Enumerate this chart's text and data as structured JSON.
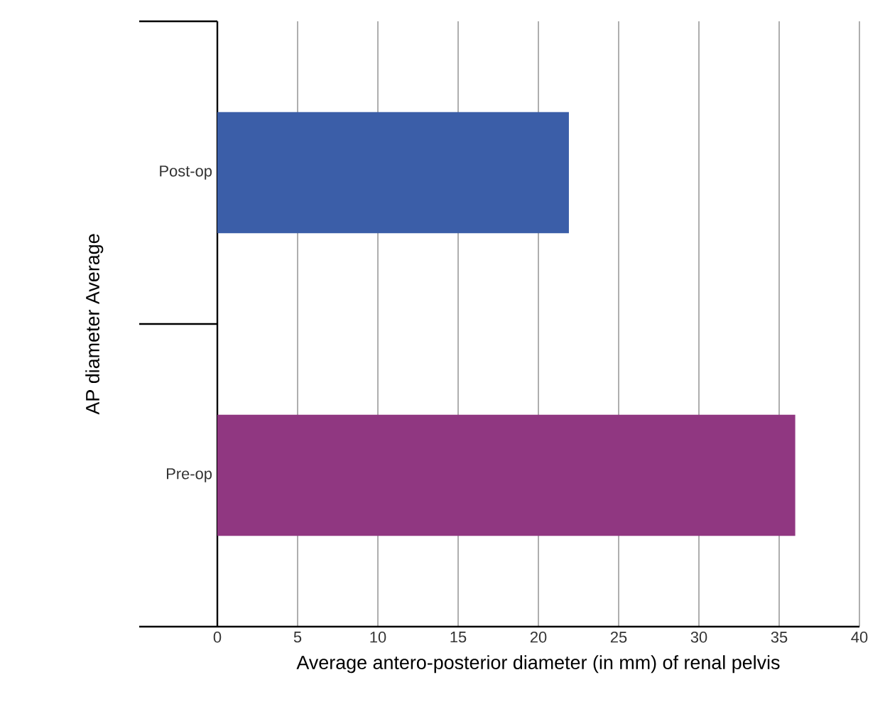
{
  "chart_data": {
    "type": "bar",
    "orientation": "horizontal",
    "xlabel": "Average antero-posterior diameter (in mm) of renal pelvis",
    "ylabel": "AP diameter Average",
    "categories": [
      "Post-op",
      "Pre-op"
    ],
    "values": [
      21.9,
      36.0
    ],
    "colors": [
      "#3b5ea8",
      "#903781"
    ],
    "xlim": [
      0,
      40
    ],
    "xticks": [
      0,
      5,
      10,
      15,
      20,
      25,
      30,
      35,
      40
    ],
    "grid": "x"
  }
}
